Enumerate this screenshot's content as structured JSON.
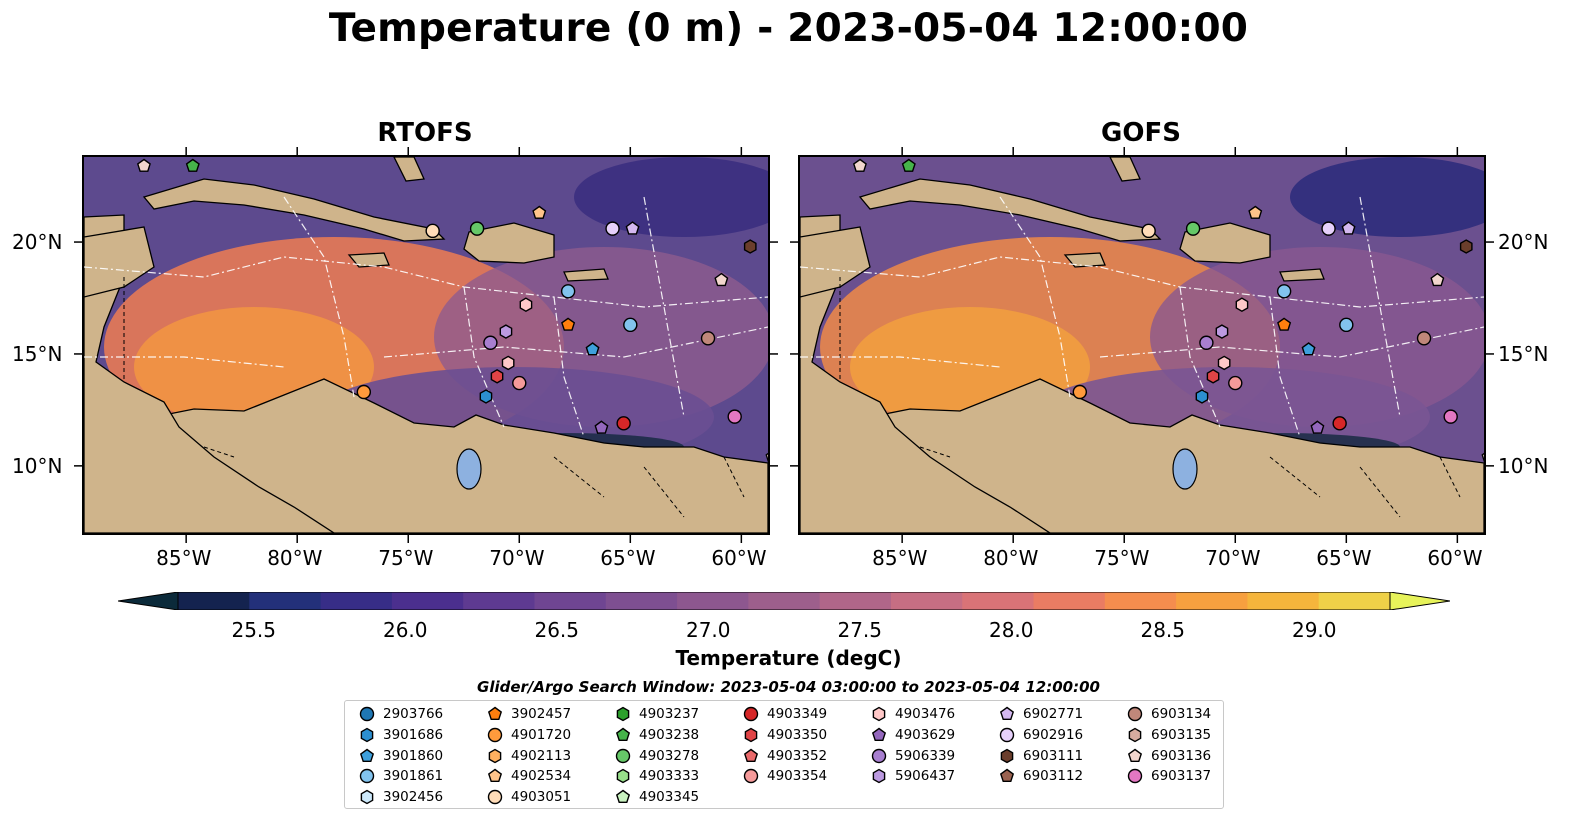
{
  "title": "Temperature (0 m) - 2023-05-04 12:00:00",
  "panels": [
    {
      "title": "RTOFS",
      "colors": [
        "#5d4a8e",
        "#ee7d52",
        "#8f5b8e",
        "#f59b3e",
        "#6a4f92",
        "#3b2f80"
      ]
    },
    {
      "title": "GOFS",
      "colors": [
        "#6b508f",
        "#f08a48",
        "#8a5890",
        "#f6a43c",
        "#7a5593",
        "#2f2c7c"
      ]
    }
  ],
  "axes": {
    "x_ticks": [
      "85°W",
      "80°W",
      "75°W",
      "70°W",
      "65°W",
      "60°W"
    ],
    "y_ticks": [
      "20°N",
      "15°N",
      "10°N"
    ],
    "lon_range": [
      -89.6,
      -58.8
    ],
    "lat_range": [
      7.0,
      23.8
    ],
    "x_tick_lons": [
      -85,
      -80,
      -75,
      -70,
      -65,
      -60
    ],
    "y_tick_lats": [
      20,
      15,
      10
    ]
  },
  "colorbar": {
    "title": "Temperature (degC)",
    "ticks": [
      "25.5",
      "26.0",
      "26.5",
      "27.0",
      "27.5",
      "28.0",
      "28.5",
      "29.0"
    ],
    "tick_values": [
      25.5,
      26.0,
      26.5,
      27.0,
      27.5,
      28.0,
      28.5,
      29.0
    ],
    "range": [
      25.25,
      29.25
    ],
    "extend": "both",
    "colors": [
      "#0b2a3a",
      "#14234f",
      "#23307a",
      "#372d87",
      "#4b2f8e",
      "#5e3a91",
      "#6f4592",
      "#7e4f91",
      "#8d578f",
      "#9d5f8c",
      "#b06689",
      "#c66e83",
      "#d97377",
      "#ea7c63",
      "#f58d4e",
      "#f7a03f",
      "#f5b53c",
      "#efd148",
      "#e7f35a"
    ],
    "under_color": "#0b2a3a",
    "over_color": "#e7f35a"
  },
  "legend": {
    "title": "Glider/Argo Search Window: 2023-05-04 03:00:00 to 2023-05-04 12:00:00",
    "columns": [
      [
        {
          "id": "2903766",
          "marker": "circle",
          "color": "#1f77b4"
        },
        {
          "id": "3901686",
          "marker": "hexagon",
          "color": "#2c8fd0"
        },
        {
          "id": "3901860",
          "marker": "pentagon",
          "color": "#3ea0dc"
        },
        {
          "id": "3901861",
          "marker": "circle",
          "color": "#82c3ee"
        },
        {
          "id": "3902456",
          "marker": "hexagon",
          "color": "#cde9fb"
        }
      ],
      [
        {
          "id": "3902457",
          "marker": "pentagon",
          "color": "#ff7f0e"
        },
        {
          "id": "4901720",
          "marker": "circle",
          "color": "#ff9a3c"
        },
        {
          "id": "4902113",
          "marker": "hexagon",
          "color": "#ffb060"
        },
        {
          "id": "4902534",
          "marker": "pentagon",
          "color": "#ffc48a"
        },
        {
          "id": "4903051",
          "marker": "circle",
          "color": "#ffdcb8"
        }
      ],
      [
        {
          "id": "4903237",
          "marker": "hexagon",
          "color": "#2ca02c"
        },
        {
          "id": "4903238",
          "marker": "pentagon",
          "color": "#46b34a"
        },
        {
          "id": "4903278",
          "marker": "circle",
          "color": "#66c868"
        },
        {
          "id": "4903333",
          "marker": "hexagon",
          "color": "#98df8a"
        },
        {
          "id": "4903345",
          "marker": "pentagon",
          "color": "#c9f2c0"
        }
      ],
      [
        {
          "id": "4903349",
          "marker": "circle",
          "color": "#d62728"
        },
        {
          "id": "4903350",
          "marker": "hexagon",
          "color": "#e04446"
        },
        {
          "id": "4903352",
          "marker": "pentagon",
          "color": "#ea6a6b"
        },
        {
          "id": "4903354",
          "marker": "circle",
          "color": "#f59a9a"
        }
      ],
      [
        {
          "id": "4903476",
          "marker": "hexagon",
          "color": "#ffc8c8"
        },
        {
          "id": "4903629",
          "marker": "pentagon",
          "color": "#9467bd"
        },
        {
          "id": "5906339",
          "marker": "circle",
          "color": "#a87fd0"
        },
        {
          "id": "5906437",
          "marker": "hexagon",
          "color": "#bc9ae0"
        }
      ],
      [
        {
          "id": "6902771",
          "marker": "pentagon",
          "color": "#d4b8f0"
        },
        {
          "id": "6902916",
          "marker": "circle",
          "color": "#e6d0fa"
        },
        {
          "id": "6903111",
          "marker": "hexagon",
          "color": "#6b3e2c"
        },
        {
          "id": "6903112",
          "marker": "pentagon",
          "color": "#9a6250"
        }
      ],
      [
        {
          "id": "6903134",
          "marker": "circle",
          "color": "#c0877a"
        },
        {
          "id": "6903135",
          "marker": "hexagon",
          "color": "#d8ab9f"
        },
        {
          "id": "6903136",
          "marker": "pentagon",
          "color": "#f2d6cd"
        },
        {
          "id": "6903137",
          "marker": "circle",
          "color": "#e377c2"
        }
      ]
    ]
  },
  "float_positions": [
    {
      "id": "3901686",
      "lon": -71.5,
      "lat": 13.1
    },
    {
      "id": "3901860",
      "lon": -66.7,
      "lat": 15.2
    },
    {
      "id": "3901861",
      "lon": -65.0,
      "lat": 16.3
    },
    {
      "id": "3901861",
      "lon": -67.8,
      "lat": 17.8
    },
    {
      "id": "3902457",
      "lon": -67.8,
      "lat": 16.3
    },
    {
      "id": "4901720",
      "lon": -77.0,
      "lat": 13.3
    },
    {
      "id": "4902534",
      "lon": -69.1,
      "lat": 21.3
    },
    {
      "id": "4903051",
      "lon": -73.9,
      "lat": 20.5
    },
    {
      "id": "4903238",
      "lon": -84.7,
      "lat": 23.4
    },
    {
      "id": "4903278",
      "lon": -71.9,
      "lat": 20.6
    },
    {
      "id": "4903349",
      "lon": -65.3,
      "lat": 11.9
    },
    {
      "id": "4903350",
      "lon": -71.0,
      "lat": 14.0
    },
    {
      "id": "4903354",
      "lon": -70.0,
      "lat": 13.7
    },
    {
      "id": "4903476",
      "lon": -70.5,
      "lat": 14.6
    },
    {
      "id": "4903476",
      "lon": -69.7,
      "lat": 17.2
    },
    {
      "id": "4903629",
      "lon": -66.3,
      "lat": 11.7
    },
    {
      "id": "5906339",
      "lon": -71.3,
      "lat": 15.5
    },
    {
      "id": "5906437",
      "lon": -70.6,
      "lat": 16.0
    },
    {
      "id": "6902771",
      "lon": -64.9,
      "lat": 20.6
    },
    {
      "id": "6902916",
      "lon": -65.8,
      "lat": 20.6
    },
    {
      "id": "6903111",
      "lon": -59.6,
      "lat": 19.8
    },
    {
      "id": "6903134",
      "lon": -61.5,
      "lat": 15.7
    },
    {
      "id": "6903136",
      "lon": -60.9,
      "lat": 18.3
    },
    {
      "id": "6903136",
      "lon": -86.9,
      "lat": 23.4
    },
    {
      "id": "6903136",
      "lon": -58.6,
      "lat": 10.4
    },
    {
      "id": "6903137",
      "lon": -60.3,
      "lat": 12.2
    }
  ]
}
